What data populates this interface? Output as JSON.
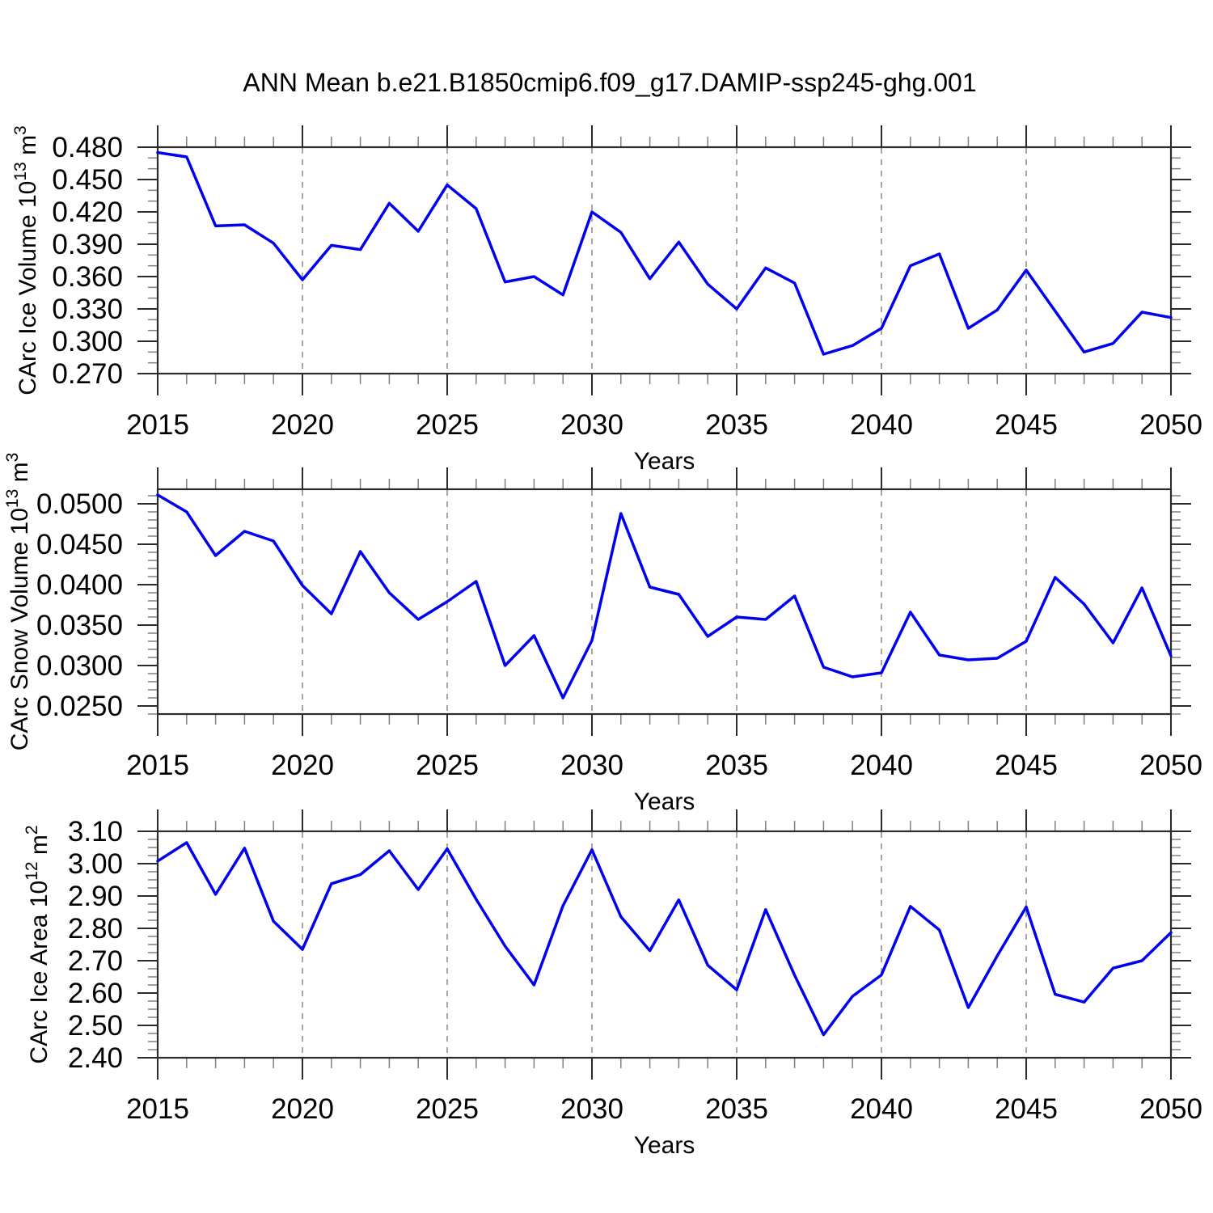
{
  "title": "ANN Mean b.e21.B1850cmip6.f09_g17.DAMIP-ssp245-ghg.001",
  "colors": {
    "line": "#0000EE",
    "frame": "#2B2B2B",
    "grid": "#A6A6A6",
    "tick_minor": "#808080",
    "text": "#000000",
    "background": "#FFFFFF"
  },
  "x_axis": {
    "label": "Years",
    "start": 2015,
    "end": 2050,
    "major_step": 5,
    "minor_step": 1,
    "major_tick_years": [
      2015,
      2020,
      2025,
      2030,
      2035,
      2040,
      2045,
      2050
    ],
    "gridline_years": [
      2020,
      2025,
      2030,
      2035,
      2040,
      2045
    ]
  },
  "chart_data": [
    {
      "id": "ice-volume",
      "type": "line",
      "ylabel_plain": "CArc Ice Volume 10^13 m^3",
      "ylabel_parts": [
        {
          "t": "CArc Ice Volume 10"
        },
        {
          "t": "13",
          "sup": true
        },
        {
          "t": " m"
        },
        {
          "t": "3",
          "sup": true
        }
      ],
      "ylim": [
        0.27,
        0.48
      ],
      "ytick_major_step": 0.03,
      "ytick_minor_step": 0.01,
      "ytick_decimals": 3,
      "ytick_labels": [
        "0.270",
        "0.300",
        "0.330",
        "0.360",
        "0.390",
        "0.420",
        "0.450",
        "0.480"
      ],
      "xlabel": "Years",
      "grid": "vertical-dashed",
      "legend": "none",
      "x": [
        2015,
        2016,
        2017,
        2018,
        2019,
        2020,
        2021,
        2022,
        2023,
        2024,
        2025,
        2026,
        2027,
        2028,
        2029,
        2030,
        2031,
        2032,
        2033,
        2034,
        2035,
        2036,
        2037,
        2038,
        2039,
        2040,
        2041,
        2042,
        2043,
        2044,
        2045,
        2046,
        2047,
        2048,
        2049,
        2050
      ],
      "values": [
        0.475,
        0.471,
        0.407,
        0.408,
        0.391,
        0.357,
        0.389,
        0.385,
        0.428,
        0.402,
        0.445,
        0.423,
        0.355,
        0.36,
        0.343,
        0.42,
        0.401,
        0.358,
        0.392,
        0.353,
        0.33,
        0.368,
        0.354,
        0.288,
        0.296,
        0.312,
        0.37,
        0.381,
        0.312,
        0.329,
        0.366,
        0.328,
        0.29,
        0.298,
        0.327,
        0.322
      ]
    },
    {
      "id": "snow-volume",
      "type": "line",
      "ylabel_plain": "CArc Snow Volume 10^13 m^3",
      "ylabel_parts": [
        {
          "t": "CArc Snow Volume 10"
        },
        {
          "t": "13",
          "sup": true
        },
        {
          "t": " m"
        },
        {
          "t": "3",
          "sup": true
        }
      ],
      "ylim": [
        0.024,
        0.0518
      ],
      "ytick_major_step": 0.005,
      "ytick_minor_step": 0.001,
      "ytick_decimals": 4,
      "ytick_labels": [
        "0.0250",
        "0.0300",
        "0.0350",
        "0.0400",
        "0.0450",
        "0.0500"
      ],
      "xlabel": "Years",
      "grid": "vertical-dashed",
      "legend": "none",
      "x": [
        2015,
        2016,
        2017,
        2018,
        2019,
        2020,
        2021,
        2022,
        2023,
        2024,
        2025,
        2026,
        2027,
        2028,
        2029,
        2030,
        2031,
        2032,
        2033,
        2034,
        2035,
        2036,
        2037,
        2038,
        2039,
        2040,
        2041,
        2042,
        2043,
        2044,
        2045,
        2046,
        2047,
        2048,
        2049,
        2050
      ],
      "values": [
        0.0511,
        0.049,
        0.0436,
        0.0466,
        0.0454,
        0.0399,
        0.0364,
        0.0441,
        0.039,
        0.0357,
        0.0379,
        0.0404,
        0.03,
        0.0337,
        0.026,
        0.0331,
        0.0488,
        0.0397,
        0.0388,
        0.0336,
        0.036,
        0.0357,
        0.0386,
        0.0298,
        0.0286,
        0.0291,
        0.0366,
        0.0313,
        0.0307,
        0.0309,
        0.033,
        0.0409,
        0.0376,
        0.0328,
        0.0396,
        0.0312
      ]
    },
    {
      "id": "ice-area",
      "type": "line",
      "ylabel_plain": "CArc Ice Area 10^12 m^2",
      "ylabel_parts": [
        {
          "t": "CArc Ice Area 10"
        },
        {
          "t": "12",
          "sup": true
        },
        {
          "t": " m"
        },
        {
          "t": "2",
          "sup": true
        }
      ],
      "ylim": [
        2.4,
        3.1
      ],
      "ytick_major_step": 0.1,
      "ytick_minor_step": 0.025,
      "ytick_decimals": 2,
      "ytick_labels": [
        "2.40",
        "2.50",
        "2.60",
        "2.70",
        "2.80",
        "2.90",
        "3.00",
        "3.10"
      ],
      "xlabel": "Years",
      "grid": "vertical-dashed",
      "legend": "none",
      "x": [
        2015,
        2016,
        2017,
        2018,
        2019,
        2020,
        2021,
        2022,
        2023,
        2024,
        2025,
        2026,
        2027,
        2028,
        2029,
        2030,
        2031,
        2032,
        2033,
        2034,
        2035,
        2036,
        2037,
        2038,
        2039,
        2040,
        2041,
        2042,
        2043,
        2044,
        2045,
        2046,
        2047,
        2048,
        2049,
        2050
      ],
      "values": [
        3.008,
        3.065,
        2.905,
        3.048,
        2.822,
        2.735,
        2.938,
        2.966,
        3.04,
        2.92,
        3.046,
        2.89,
        2.745,
        2.625,
        2.87,
        3.043,
        2.836,
        2.731,
        2.888,
        2.686,
        2.61,
        2.858,
        2.655,
        2.471,
        2.59,
        2.656,
        2.868,
        2.795,
        2.555,
        2.715,
        2.866,
        2.596,
        2.572,
        2.677,
        2.7,
        2.787
      ]
    }
  ]
}
